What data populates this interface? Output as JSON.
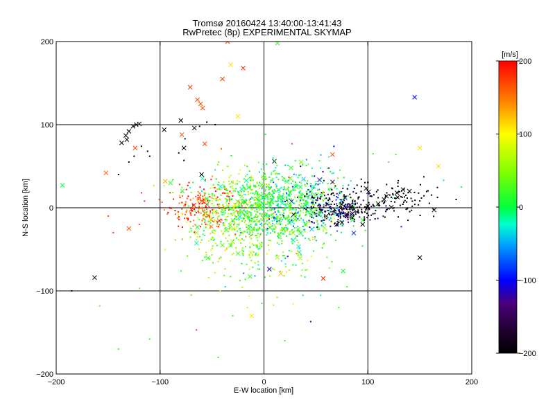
{
  "chart_data": {
    "type": "scatter",
    "title": "Tromsø 20160424 13:40:00-13:41:43",
    "subtitle": "RwPretec (8p) EXPERIMENTAL SKYMAP",
    "xlabel": "E-W location [km]",
    "ylabel": "N-S location [km]",
    "xlim": [
      -200,
      200
    ],
    "ylim": [
      -200,
      200
    ],
    "xticks": [
      -200,
      -100,
      0,
      100,
      200
    ],
    "yticks": [
      -200,
      -100,
      0,
      100,
      200
    ],
    "grid_lines": [
      -100,
      0,
      100
    ],
    "grid": true,
    "colorbar": {
      "label": "[m/s]",
      "range": [
        -200,
        200
      ],
      "ticks": [
        200,
        100,
        0,
        -100,
        -200
      ]
    },
    "series": [
      {
        "marker": "x",
        "points": [
          [
            -194,
            27,
            0
          ],
          [
            -163,
            -84,
            -200
          ],
          [
            -152,
            42,
            160
          ],
          [
            -130,
            -25,
            160
          ],
          [
            -137,
            78,
            -200
          ],
          [
            -133,
            87,
            -200
          ],
          [
            -130,
            92,
            -200
          ],
          [
            -126,
            98,
            -200
          ],
          [
            -123,
            100,
            -200
          ],
          [
            -120,
            101,
            -200
          ],
          [
            -132,
            82,
            -200
          ],
          [
            -124,
            72,
            170
          ],
          [
            -96,
            94,
            -200
          ],
          [
            -95,
            32,
            130
          ],
          [
            -90,
            30,
            20
          ],
          [
            -80,
            105,
            -200
          ],
          [
            -79,
            88,
            160
          ],
          [
            -77,
            72,
            -200
          ],
          [
            -71,
            145,
            180
          ],
          [
            -67,
            96,
            -200
          ],
          [
            -64,
            130,
            170
          ],
          [
            -61,
            125,
            170
          ],
          [
            -59,
            120,
            170
          ],
          [
            -57,
            77,
            170
          ],
          [
            -60,
            40,
            -200
          ],
          [
            -40,
            155,
            180
          ],
          [
            -35,
            200,
            180
          ],
          [
            -32,
            172,
            110
          ],
          [
            -25,
            110,
            110
          ],
          [
            -20,
            168,
            180
          ],
          [
            -12,
            -130,
            110
          ],
          [
            13,
            198,
            20
          ],
          [
            10,
            56,
            -200
          ],
          [
            26,
            48,
            20
          ],
          [
            57,
            -85,
            180
          ],
          [
            66,
            64,
            170
          ],
          [
            66,
            31,
            -160
          ],
          [
            145,
            133,
            -100
          ],
          [
            150,
            -60,
            -200
          ],
          [
            150,
            72,
            110
          ],
          [
            168,
            50,
            110
          ],
          [
            -60,
            8,
            170
          ],
          [
            -55,
            4,
            180
          ],
          [
            -70,
            -2,
            180
          ],
          [
            -48,
            -6,
            90
          ],
          [
            -30,
            -15,
            40
          ],
          [
            -15,
            -25,
            20
          ],
          [
            -5,
            2,
            20
          ],
          [
            5,
            6,
            10
          ],
          [
            15,
            12,
            0
          ],
          [
            25,
            18,
            0
          ],
          [
            35,
            25,
            0
          ],
          [
            45,
            20,
            10
          ],
          [
            -40,
            -45,
            40
          ],
          [
            -25,
            -55,
            30
          ],
          [
            -65,
            -30,
            60
          ],
          [
            55,
            -4,
            -180
          ],
          [
            60,
            -10,
            -180
          ],
          [
            68,
            -2,
            -170
          ],
          [
            75,
            4,
            -180
          ],
          [
            80,
            -8,
            -190
          ],
          [
            85,
            -12,
            -200
          ],
          [
            95,
            -20,
            -200
          ],
          [
            110,
            5,
            -200
          ],
          [
            118,
            14,
            -200
          ],
          [
            128,
            18,
            -200
          ],
          [
            140,
            20,
            -200
          ],
          [
            95,
            -15,
            20
          ],
          [
            100,
            2,
            -200
          ],
          [
            40,
            -20,
            30
          ],
          [
            70,
            -20,
            -170
          ],
          [
            78,
            12,
            -180
          ]
        ]
      },
      {
        "marker": "dot",
        "clusters": [
          {
            "cx": -60,
            "cy": 2,
            "sx": 18,
            "sy": 12,
            "n": 180,
            "v": 170,
            "spread": 25
          },
          {
            "cx": -30,
            "cy": -10,
            "sx": 22,
            "sy": 26,
            "n": 350,
            "v": 50,
            "spread": 40
          },
          {
            "cx": 8,
            "cy": 0,
            "sx": 26,
            "sy": 22,
            "n": 550,
            "v": 10,
            "spread": 25
          },
          {
            "cx": 45,
            "cy": 10,
            "sx": 22,
            "sy": 22,
            "n": 280,
            "v": -20,
            "spread": 60
          },
          {
            "cx": 75,
            "cy": 0,
            "sx": 18,
            "sy": 10,
            "n": 220,
            "v": -170,
            "spread": 40
          },
          {
            "cx": 125,
            "cy": 10,
            "sx": 22,
            "sy": 10,
            "n": 100,
            "v": -200,
            "spread": 0
          },
          {
            "cx": 0,
            "cy": -55,
            "sx": 28,
            "sy": 28,
            "n": 130,
            "v": 40,
            "spread": 50
          }
        ],
        "points": [
          [
            -185,
            -100,
            -200
          ],
          [
            -158,
            -118,
            130
          ],
          [
            -140,
            -170,
            20
          ],
          [
            -120,
            -97,
            30
          ],
          [
            -110,
            -158,
            20
          ],
          [
            -65,
            -147,
            180
          ],
          [
            -44,
            -180,
            20
          ],
          [
            -70,
            -105,
            40
          ],
          [
            -30,
            -130,
            20
          ],
          [
            -2,
            -115,
            20
          ],
          [
            45,
            -137,
            -100
          ],
          [
            72,
            -120,
            20
          ],
          [
            80,
            -95,
            20
          ],
          [
            40,
            -75,
            40
          ],
          [
            20,
            -160,
            20
          ],
          [
            -112,
            68,
            -200
          ],
          [
            -118,
            74,
            -200
          ],
          [
            -110,
            62,
            -200
          ],
          [
            -77,
            57,
            -200
          ],
          [
            -82,
            66,
            -200
          ],
          [
            -76,
            83,
            -200
          ],
          [
            -62,
            98,
            -200
          ],
          [
            -55,
            103,
            -200
          ],
          [
            -47,
            100,
            -200
          ],
          [
            -41,
            71,
            160
          ],
          [
            27,
            77,
            170
          ],
          [
            105,
            65,
            20
          ],
          [
            120,
            55,
            20
          ],
          [
            127,
            64,
            20
          ],
          [
            190,
            25,
            0
          ],
          [
            173,
            33,
            0
          ],
          [
            185,
            10,
            -200
          ],
          [
            -150,
            -10,
            170
          ],
          [
            -145,
            -30,
            180
          ],
          [
            -120,
            -20,
            170
          ],
          [
            -115,
            8,
            180
          ],
          [
            -140,
            40,
            -200
          ],
          [
            -130,
            55,
            -200
          ],
          [
            -125,
            62,
            -200
          ],
          [
            -118,
            18,
            180
          ]
        ]
      }
    ]
  }
}
